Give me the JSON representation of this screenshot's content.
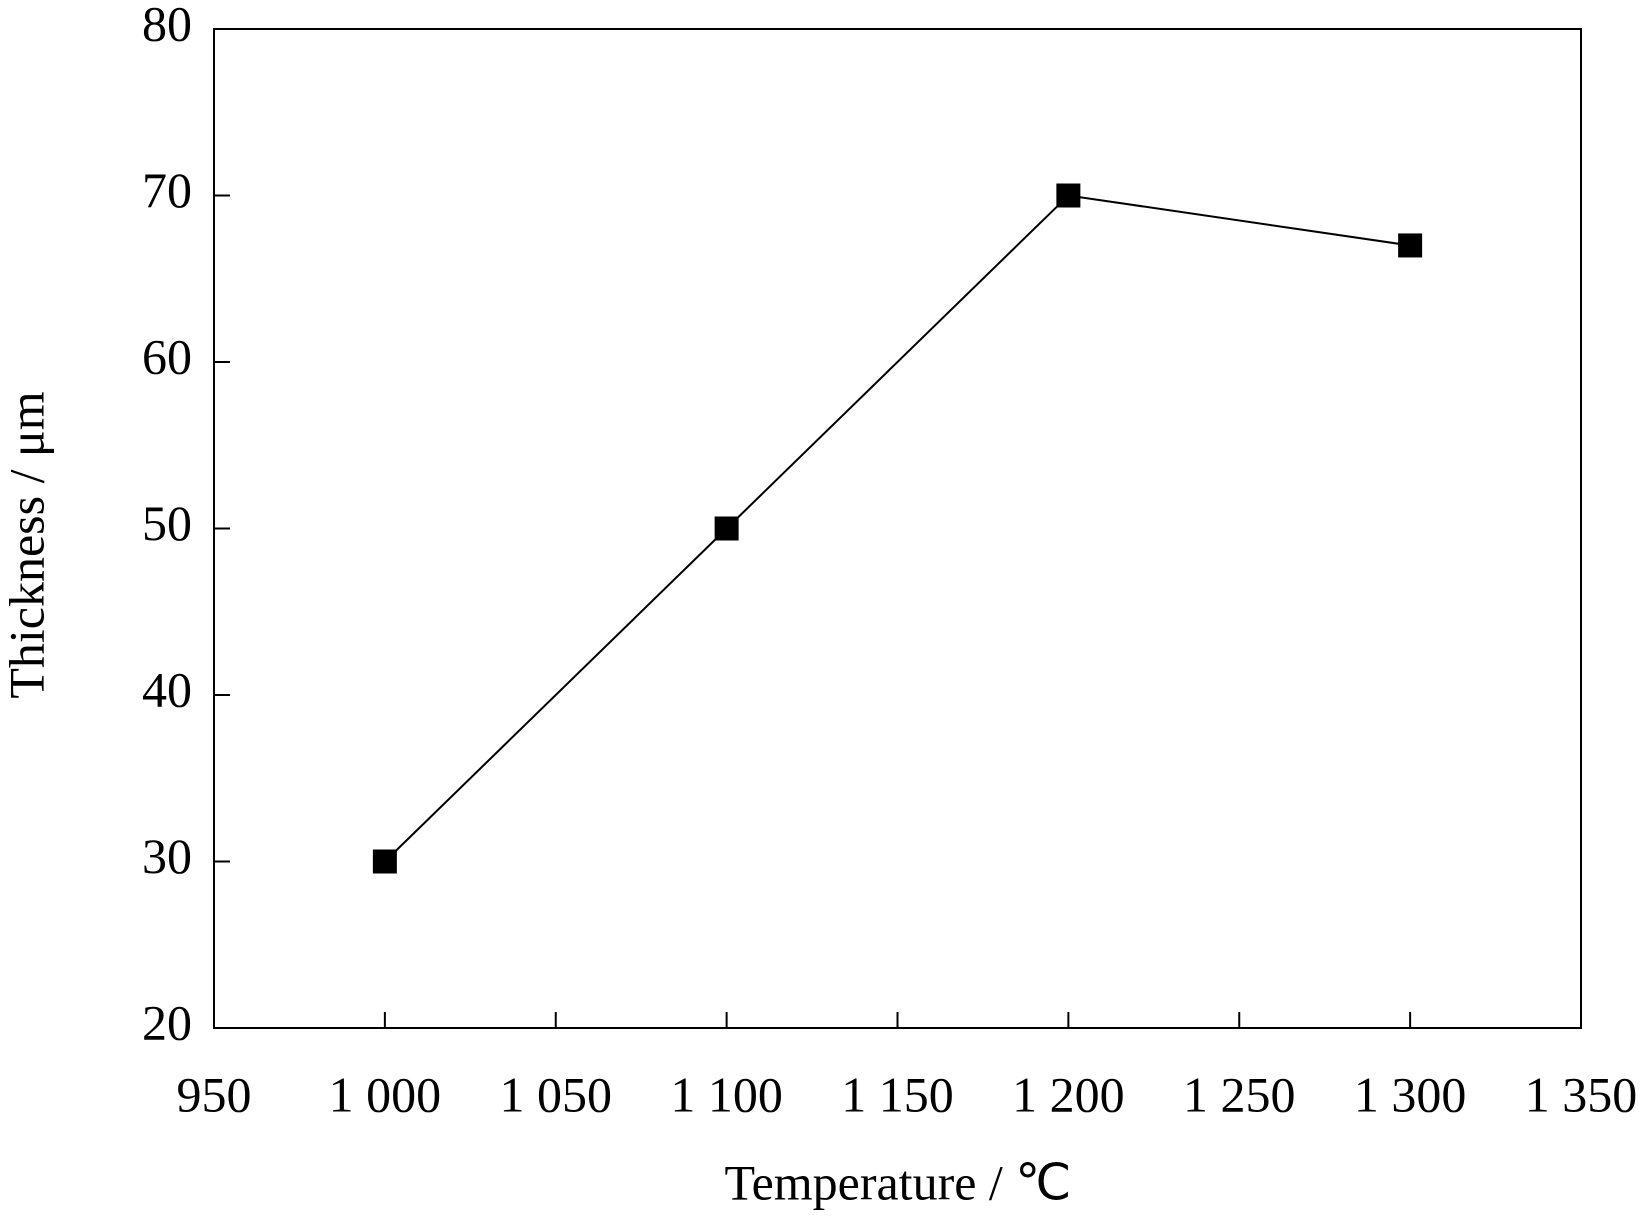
{
  "chart_data": {
    "type": "line",
    "x_label": "Temperature / ℃",
    "y_label": "Thickness / μm",
    "series": [
      {
        "x": [
          1000,
          1100,
          1200,
          1300
        ],
        "values": [
          30,
          50,
          70,
          67
        ],
        "color": "#000000",
        "marker": "square"
      }
    ],
    "xlim": [
      950,
      1350
    ],
    "xticks": [
      950,
      {
        "value": 1000,
        "label": "1 000"
      },
      {
        "value": 1050,
        "label": "1 050"
      },
      {
        "value": 1100,
        "label": "1 100"
      },
      {
        "value": 1150,
        "label": "1 150"
      },
      {
        "value": 1200,
        "label": "1 200"
      },
      {
        "value": 1250,
        "label": "1 250"
      },
      {
        "value": 1300,
        "label": "1 300"
      },
      {
        "value": 1350,
        "label": "1 350"
      }
    ],
    "ylim": [
      20,
      80
    ],
    "yticks": [
      20,
      30,
      40,
      50,
      60,
      70,
      80
    ],
    "grid": false
  }
}
